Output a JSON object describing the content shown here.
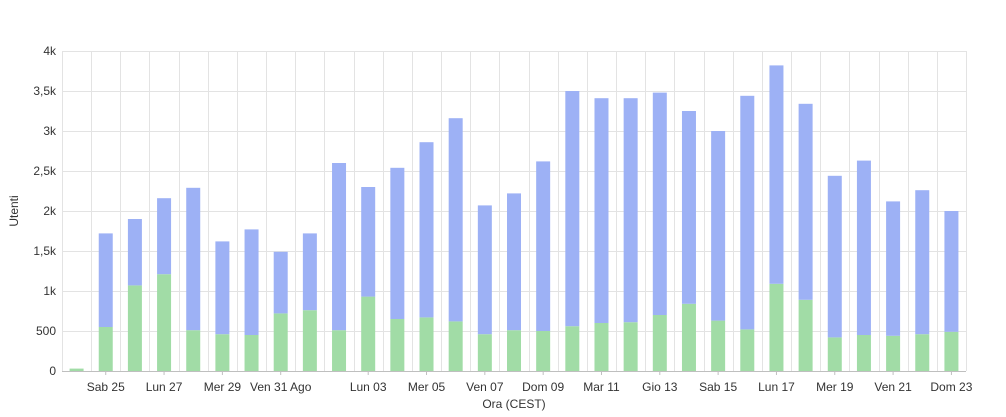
{
  "chart_data": {
    "type": "bar",
    "stacked": true,
    "xlabel": "Ora (CEST)",
    "ylabel": "Utenti",
    "ylim": [
      0,
      4000
    ],
    "y_ticks": [
      {
        "value": 0,
        "label": "0"
      },
      {
        "value": 500,
        "label": "500"
      },
      {
        "value": 1000,
        "label": "1k"
      },
      {
        "value": 1500,
        "label": "1,5k"
      },
      {
        "value": 2000,
        "label": "2k"
      },
      {
        "value": 2500,
        "label": "2,5k"
      },
      {
        "value": 3000,
        "label": "3k"
      },
      {
        "value": 3500,
        "label": "3,5k"
      },
      {
        "value": 4000,
        "label": "4k"
      }
    ],
    "x_tick_labels": [
      {
        "index": 1,
        "label": "Sab 25"
      },
      {
        "index": 3,
        "label": "Lun 27"
      },
      {
        "index": 5,
        "label": "Mer 29"
      },
      {
        "index": 7,
        "label": "Ven 31 Ago"
      },
      {
        "index": 10,
        "label": "Lun 03"
      },
      {
        "index": 12,
        "label": "Mer 05"
      },
      {
        "index": 14,
        "label": "Ven 07"
      },
      {
        "index": 16,
        "label": "Dom 09"
      },
      {
        "index": 18,
        "label": "Mar 11"
      },
      {
        "index": 20,
        "label": "Gio 13"
      },
      {
        "index": 22,
        "label": "Sab 15"
      },
      {
        "index": 24,
        "label": "Lun 17"
      },
      {
        "index": 26,
        "label": "Mer 19"
      },
      {
        "index": 28,
        "label": "Ven 21"
      },
      {
        "index": 30,
        "label": "Dom 23"
      }
    ],
    "series": [
      {
        "color": "#a1dca6",
        "values": [
          30,
          550,
          1070,
          1210,
          510,
          460,
          450,
          720,
          760,
          510,
          930,
          650,
          670,
          620,
          460,
          510,
          500,
          560,
          600,
          610,
          700,
          840,
          630,
          520,
          1090,
          890,
          420,
          450,
          440,
          460,
          490
        ]
      },
      {
        "color": "#9db1f5",
        "values": [
          0,
          1170,
          830,
          950,
          1780,
          1160,
          1320,
          770,
          960,
          2090,
          1370,
          1890,
          2190,
          2540,
          1610,
          1710,
          2120,
          2940,
          2810,
          2800,
          2780,
          2410,
          2370,
          2920,
          2730,
          2450,
          2020,
          2180,
          1680,
          1800,
          1510
        ]
      }
    ],
    "grid": true
  }
}
